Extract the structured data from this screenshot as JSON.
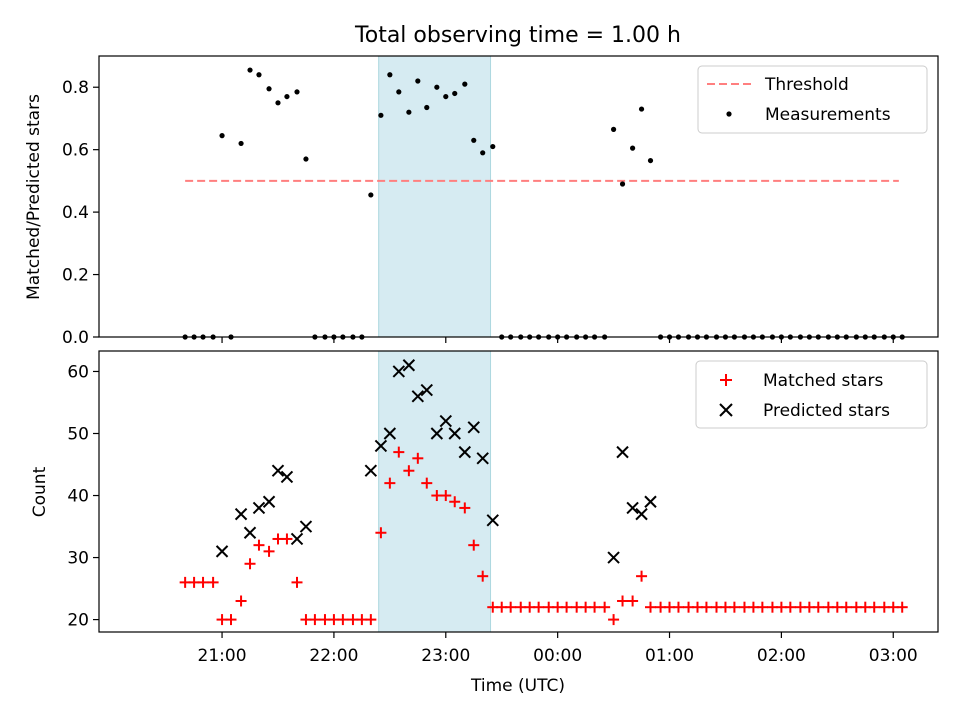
{
  "title": "Total observing time = 1.00 h",
  "x_axis": {
    "label": "Time (UTC)",
    "ticks": [
      "21:00",
      "22:00",
      "23:00",
      "00:00",
      "01:00",
      "02:00",
      "03:00"
    ],
    "tick_hours": [
      21,
      22,
      23,
      24,
      25,
      26,
      27
    ],
    "range_hours": [
      19.9,
      27.4
    ]
  },
  "observing_window_hours": [
    22.4,
    23.4
  ],
  "chart_data": [
    {
      "type": "scatter",
      "ylabel": "Matched/Predicted stars",
      "ylim": [
        0,
        0.9
      ],
      "yticks": [
        0.0,
        0.2,
        0.4,
        0.6,
        0.8
      ],
      "ytick_labels": [
        "0.0",
        "0.2",
        "0.4",
        "0.6",
        "0.8"
      ],
      "threshold": {
        "name": "Threshold",
        "value": 0.5,
        "x_range_hours": [
          20.67,
          27.05
        ],
        "color": "#ff7f7f"
      },
      "legend": {
        "location": "top-right",
        "entries": [
          "Threshold",
          "Measurements"
        ]
      },
      "series": [
        {
          "name": "Measurements",
          "color": "#000000",
          "x_hours": [
            20.67,
            20.75,
            20.83,
            20.92,
            21.0,
            21.08,
            21.17,
            21.25,
            21.33,
            21.42,
            21.5,
            21.58,
            21.67,
            21.75,
            21.83,
            21.92,
            22.0,
            22.08,
            22.17,
            22.25,
            22.33,
            22.42,
            22.5,
            22.58,
            22.67,
            22.75,
            22.83,
            22.92,
            23.0,
            23.08,
            23.17,
            23.25,
            23.33,
            23.42,
            23.5,
            23.58,
            23.67,
            23.75,
            23.83,
            23.92,
            24.0,
            24.08,
            24.17,
            24.25,
            24.33,
            24.42,
            24.5,
            24.58,
            24.67,
            24.75,
            24.83,
            24.92,
            25.0,
            25.08,
            25.17,
            25.25,
            25.33,
            25.42,
            25.5,
            25.58,
            25.67,
            25.75,
            25.83,
            25.92,
            26.0,
            26.08,
            26.17,
            26.25,
            26.33,
            26.42,
            26.5,
            26.58,
            26.67,
            26.75,
            26.83,
            26.92,
            27.0,
            27.08
          ],
          "y": [
            0,
            0,
            0,
            0,
            0.645,
            0,
            0.62,
            0.855,
            0.84,
            0.795,
            0.75,
            0.77,
            0.785,
            0.57,
            0,
            0,
            0,
            0,
            0,
            0,
            0.455,
            0.71,
            0.84,
            0.785,
            0.72,
            0.82,
            0.735,
            0.8,
            0.77,
            0.78,
            0.81,
            0.63,
            0.59,
            0.61,
            0,
            0,
            0,
            0,
            0,
            0,
            0,
            0,
            0,
            0,
            0,
            0,
            0.665,
            0.49,
            0.605,
            0.73,
            0.565,
            0,
            0,
            0,
            0,
            0,
            0,
            0,
            0,
            0,
            0,
            0,
            0,
            0,
            0,
            0,
            0,
            0,
            0,
            0,
            0,
            0,
            0,
            0,
            0,
            0,
            0,
            0
          ]
        }
      ]
    },
    {
      "type": "scatter",
      "ylabel": "Count",
      "ylim": [
        18,
        63.3
      ],
      "yticks": [
        20,
        30,
        40,
        50,
        60
      ],
      "ytick_labels": [
        "20",
        "30",
        "40",
        "50",
        "60"
      ],
      "legend": {
        "location": "top-right",
        "entries": [
          "Matched stars",
          "Predicted stars"
        ]
      },
      "series": [
        {
          "name": "Matched stars",
          "marker": "plus",
          "color": "#ff0000",
          "x_hours": [
            20.67,
            20.75,
            20.83,
            20.92,
            21.0,
            21.08,
            21.17,
            21.25,
            21.33,
            21.42,
            21.5,
            21.58,
            21.67,
            21.75,
            21.83,
            21.92,
            22.0,
            22.08,
            22.17,
            22.25,
            22.33,
            22.42,
            22.5,
            22.58,
            22.67,
            22.75,
            22.83,
            22.92,
            23.0,
            23.08,
            23.17,
            23.25,
            23.33,
            23.42,
            23.5,
            23.58,
            23.67,
            23.75,
            23.83,
            23.92,
            24.0,
            24.08,
            24.17,
            24.25,
            24.33,
            24.42,
            24.5,
            24.58,
            24.67,
            24.75,
            24.83,
            24.92,
            25.0,
            25.08,
            25.17,
            25.25,
            25.33,
            25.42,
            25.5,
            25.58,
            25.67,
            25.75,
            25.83,
            25.92,
            26.0,
            26.08,
            26.17,
            26.25,
            26.33,
            26.42,
            26.5,
            26.58,
            26.67,
            26.75,
            26.83,
            26.92,
            27.0,
            27.08
          ],
          "y": [
            26,
            26,
            26,
            26,
            20,
            20,
            23,
            29,
            32,
            31,
            33,
            33,
            26,
            20,
            20,
            20,
            20,
            20,
            20,
            20,
            20,
            34,
            42,
            47,
            44,
            46,
            42,
            40,
            40,
            39,
            38,
            32,
            27,
            22,
            22,
            22,
            22,
            22,
            22,
            22,
            22,
            22,
            22,
            22,
            22,
            22,
            20,
            23,
            23,
            27,
            22,
            22,
            22,
            22,
            22,
            22,
            22,
            22,
            22,
            22,
            22,
            22,
            22,
            22,
            22,
            22,
            22,
            22,
            22,
            22,
            22,
            22,
            22,
            22,
            22,
            22,
            22,
            22
          ]
        },
        {
          "name": "Predicted stars",
          "marker": "x",
          "color": "#000000",
          "x_hours": [
            21.0,
            21.17,
            21.25,
            21.33,
            21.42,
            21.5,
            21.58,
            21.67,
            21.75,
            22.33,
            22.42,
            22.5,
            22.58,
            22.67,
            22.75,
            22.83,
            22.92,
            23.0,
            23.08,
            23.17,
            23.25,
            23.33,
            23.42,
            24.5,
            24.58,
            24.67,
            24.75,
            24.83
          ],
          "y": [
            31,
            37,
            34,
            38,
            39,
            44,
            43,
            33,
            35,
            44,
            48,
            50,
            60,
            61,
            56,
            57,
            50,
            52,
            50,
            47,
            51,
            46,
            36,
            30,
            47,
            38,
            37,
            39
          ]
        }
      ]
    }
  ]
}
